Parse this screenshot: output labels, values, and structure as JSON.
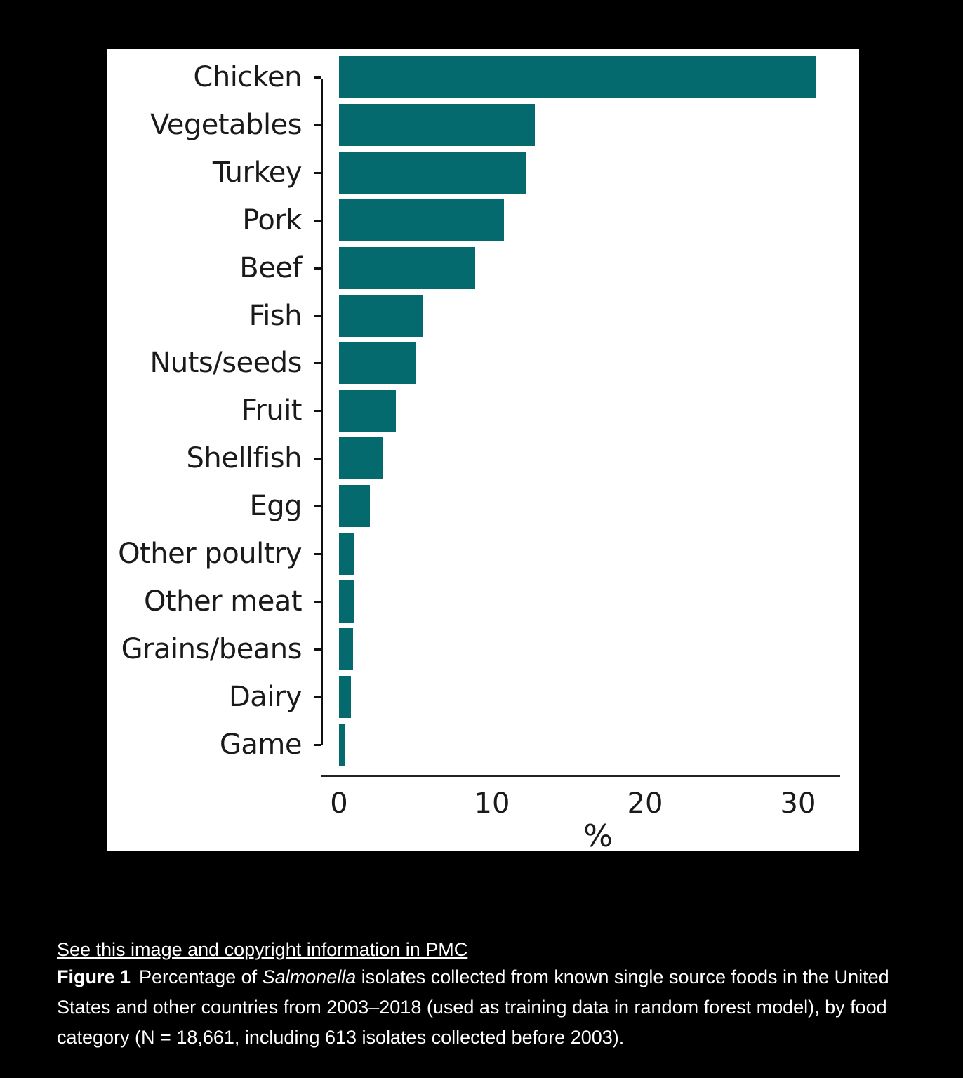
{
  "chart_data": {
    "type": "bar",
    "orientation": "horizontal",
    "title": "",
    "xlabel": "%",
    "ylabel": "",
    "xlim": [
      0,
      32
    ],
    "xticks": [
      0,
      10,
      20,
      30
    ],
    "grid": false,
    "legend": null,
    "bar_color": "#046a6e",
    "categories": [
      "Chicken",
      "Vegetables",
      "Turkey",
      "Pork",
      "Beef",
      "Fish",
      "Nuts/seeds",
      "Fruit",
      "Shellfish",
      "Egg",
      "Other poultry",
      "Other meat",
      "Grains/beans",
      "Dairy",
      "Game"
    ],
    "values": [
      31.2,
      12.8,
      12.2,
      10.8,
      8.9,
      5.5,
      5.0,
      3.7,
      2.9,
      2.0,
      1.0,
      1.0,
      0.9,
      0.8,
      0.4
    ]
  },
  "caption": {
    "link_text": "See this image and copyright information in PMC",
    "figure_number": "Figure 1",
    "text_before_italic": "Percentage of ",
    "italic": "Salmonella",
    "text_after_italic": " isolates collected from known single source foods in the United States and other countries from 2003–2018 (used as training data in random forest model), by food category (N = 18,661, including 613 isolates collected before 2003)."
  }
}
